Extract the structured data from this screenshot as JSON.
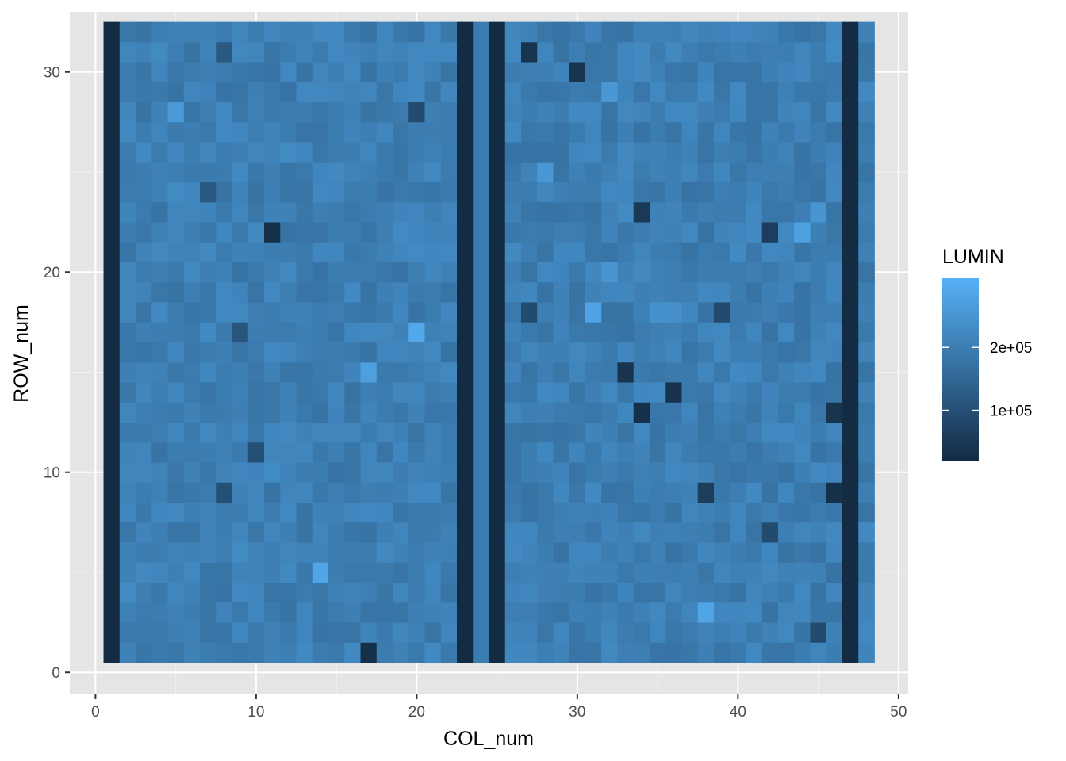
{
  "chart_data": {
    "type": "heatmap",
    "xlabel": "COL_num",
    "ylabel": "ROW_num",
    "xlim": [
      -1.6,
      50.6
    ],
    "ylim": [
      -1.1,
      33.0
    ],
    "x_ticks": [
      0,
      10,
      20,
      30,
      40,
      50
    ],
    "x_tick_labels": [
      "0",
      "10",
      "20",
      "30",
      "40",
      "50"
    ],
    "y_ticks": [
      0,
      10,
      20,
      30
    ],
    "y_tick_labels": [
      "0",
      "10",
      "20",
      "30"
    ],
    "grid": true,
    "panel_background": "#e5e5e5",
    "legend": {
      "title": "LUMIN",
      "position": "right",
      "breaks": [
        100000,
        200000
      ],
      "break_labels": [
        "1e+05",
        "2e+05"
      ],
      "range": [
        20000,
        310000
      ],
      "low_color": "#132b43",
      "high_color": "#56b1f7"
    },
    "grid_shape": {
      "cols": 48,
      "rows": 32,
      "col_start": 1,
      "row_start": 1
    },
    "typical_value": 200000,
    "dark_columns": [
      1,
      23,
      25,
      47
    ],
    "dark_column_value": 20000,
    "light_column": 24,
    "light_column_value": 195000,
    "outliers": [
      {
        "col": 34,
        "row": 13,
        "value": 30000
      },
      {
        "col": 36,
        "row": 14,
        "value": 35000
      },
      {
        "col": 46,
        "row": 13,
        "value": 40000
      },
      {
        "col": 46,
        "row": 9,
        "value": 30000
      },
      {
        "col": 11,
        "row": 22,
        "value": 30000
      },
      {
        "col": 17,
        "row": 1,
        "value": 30000
      },
      {
        "col": 27,
        "row": 31,
        "value": 40000
      },
      {
        "col": 30,
        "row": 30,
        "value": 40000
      },
      {
        "col": 33,
        "row": 15,
        "value": 40000
      },
      {
        "col": 34,
        "row": 23,
        "value": 50000
      },
      {
        "col": 42,
        "row": 22,
        "value": 60000
      },
      {
        "col": 38,
        "row": 9,
        "value": 60000
      },
      {
        "col": 27,
        "row": 18,
        "value": 90000
      },
      {
        "col": 39,
        "row": 18,
        "value": 90000
      },
      {
        "col": 20,
        "row": 28,
        "value": 90000
      },
      {
        "col": 8,
        "row": 9,
        "value": 100000
      },
      {
        "col": 10,
        "row": 11,
        "value": 100000
      },
      {
        "col": 9,
        "row": 17,
        "value": 110000
      },
      {
        "col": 45,
        "row": 2,
        "value": 90000
      },
      {
        "col": 42,
        "row": 7,
        "value": 90000
      },
      {
        "col": 7,
        "row": 24,
        "value": 120000
      },
      {
        "col": 8,
        "row": 31,
        "value": 120000
      },
      {
        "col": 14,
        "row": 5,
        "value": 285000
      },
      {
        "col": 38,
        "row": 3,
        "value": 285000
      },
      {
        "col": 31,
        "row": 18,
        "value": 280000
      },
      {
        "col": 20,
        "row": 17,
        "value": 290000
      },
      {
        "col": 17,
        "row": 15,
        "value": 270000
      },
      {
        "col": 5,
        "row": 28,
        "value": 260000
      },
      {
        "col": 32,
        "row": 29,
        "value": 255000
      },
      {
        "col": 44,
        "row": 22,
        "value": 275000
      },
      {
        "col": 45,
        "row": 23,
        "value": 250000
      },
      {
        "col": 28,
        "row": 25,
        "value": 255000
      },
      {
        "col": 32,
        "row": 20,
        "value": 250000
      },
      {
        "col": 35,
        "row": 18,
        "value": 240000
      },
      {
        "col": 36,
        "row": 18,
        "value": 240000
      }
    ]
  }
}
